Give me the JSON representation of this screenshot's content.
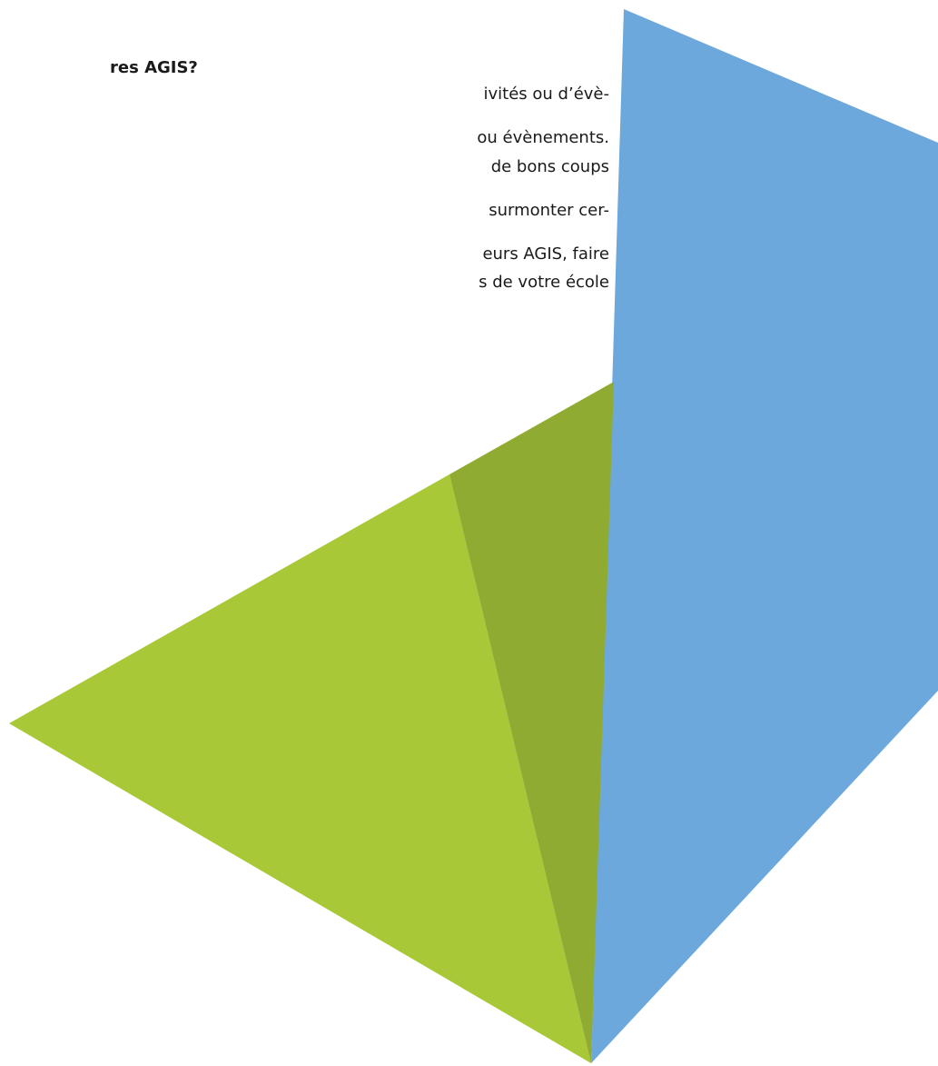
{
  "document": {
    "heading": "res AGIS?",
    "lines": [
      "ivités ou d’évè-",
      "ou évènements.",
      "de bons coups",
      "surmonter cer-",
      "eurs AGIS, faire",
      "s de votre école"
    ]
  }
}
